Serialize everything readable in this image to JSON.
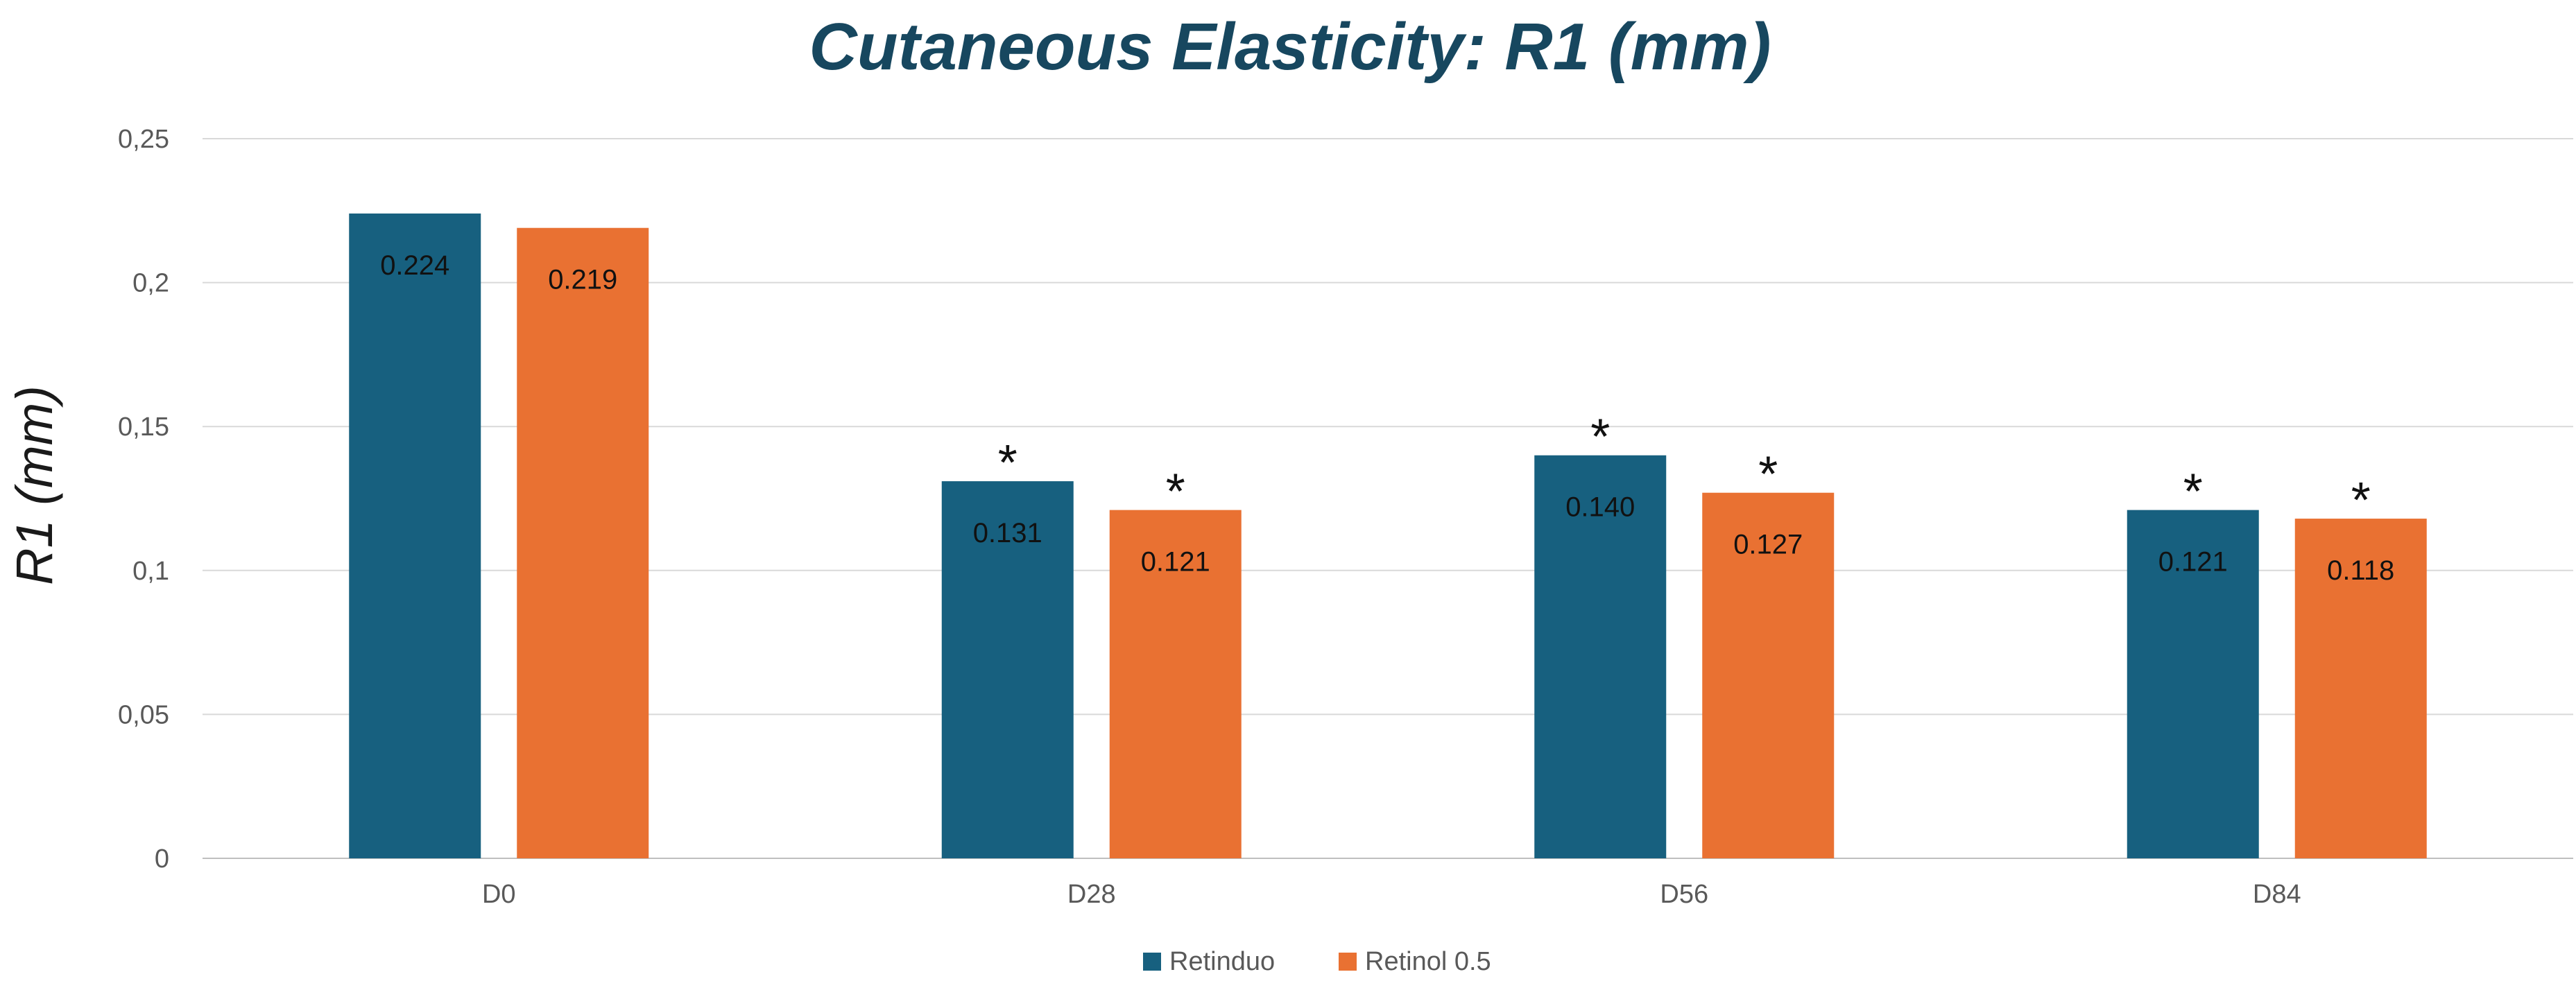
{
  "chart_data": {
    "type": "bar",
    "title": "Cutaneous Elasticity: R1 (mm)",
    "xlabel": "",
    "ylabel": "R1 (mm)",
    "ylim": [
      0,
      0.25
    ],
    "yticks": [
      0,
      0.05,
      0.1,
      0.15,
      0.2,
      0.25
    ],
    "ytick_labels": [
      "0",
      "0,05",
      "0,1",
      "0,15",
      "0,2",
      "0,25"
    ],
    "grid": true,
    "legend": "bottom",
    "categories": [
      "D0",
      "D28",
      "D56",
      "D84"
    ],
    "series": [
      {
        "name": "Retinduo",
        "color": "#17607f",
        "values": [
          0.224,
          0.131,
          0.14,
          0.121
        ],
        "labels": [
          "0.224",
          "0.131",
          "0.140",
          "0.121"
        ],
        "significance": [
          "",
          "*",
          "*",
          "*"
        ]
      },
      {
        "name": "Retinol 0.5",
        "color": "#e97132",
        "values": [
          0.219,
          0.121,
          0.127,
          0.118
        ],
        "labels": [
          "0.219",
          "0.121",
          "0.127",
          "0.118"
        ],
        "significance": [
          "",
          "*",
          "*",
          "*"
        ]
      }
    ]
  }
}
